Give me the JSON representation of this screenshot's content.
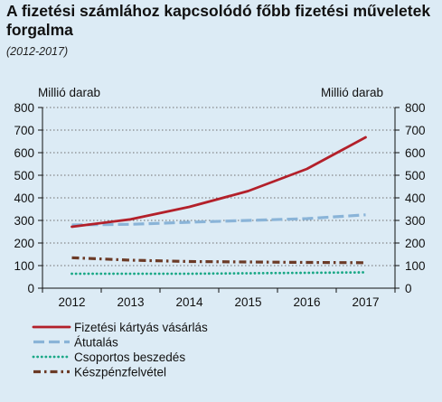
{
  "chart_data": {
    "type": "line",
    "title": "A fizetési számlához kapcsolódó főbb fizetési műveletek forgalma",
    "subtitle": "(2012-2017)",
    "y_unit_left": "Millió darab",
    "y_unit_right": "Millió darab",
    "categories": [
      "2012",
      "2013",
      "2014",
      "2015",
      "2016",
      "2017"
    ],
    "ylim": [
      0,
      800
    ],
    "yticks": [
      "0",
      "100",
      "200",
      "300",
      "400",
      "500",
      "600",
      "700",
      "800"
    ],
    "grid": "horizontal dotted",
    "series": [
      {
        "name": "Fizetési kártyás vásárlás",
        "values": [
          272,
          305,
          360,
          430,
          528,
          668
        ],
        "color": "#b3202a",
        "style": "solid"
      },
      {
        "name": "Átutalás",
        "values": [
          280,
          283,
          292,
          300,
          308,
          325
        ],
        "color": "#8ab4d8",
        "style": "dashed"
      },
      {
        "name": "Csoportos beszedés",
        "values": [
          64,
          64,
          64,
          66,
          68,
          70
        ],
        "color": "#1aa886",
        "style": "dotted"
      },
      {
        "name": "Készpénzfelvétel",
        "values": [
          135,
          124,
          118,
          116,
          114,
          113
        ],
        "color": "#6b3a26",
        "style": "dashdot"
      }
    ]
  }
}
